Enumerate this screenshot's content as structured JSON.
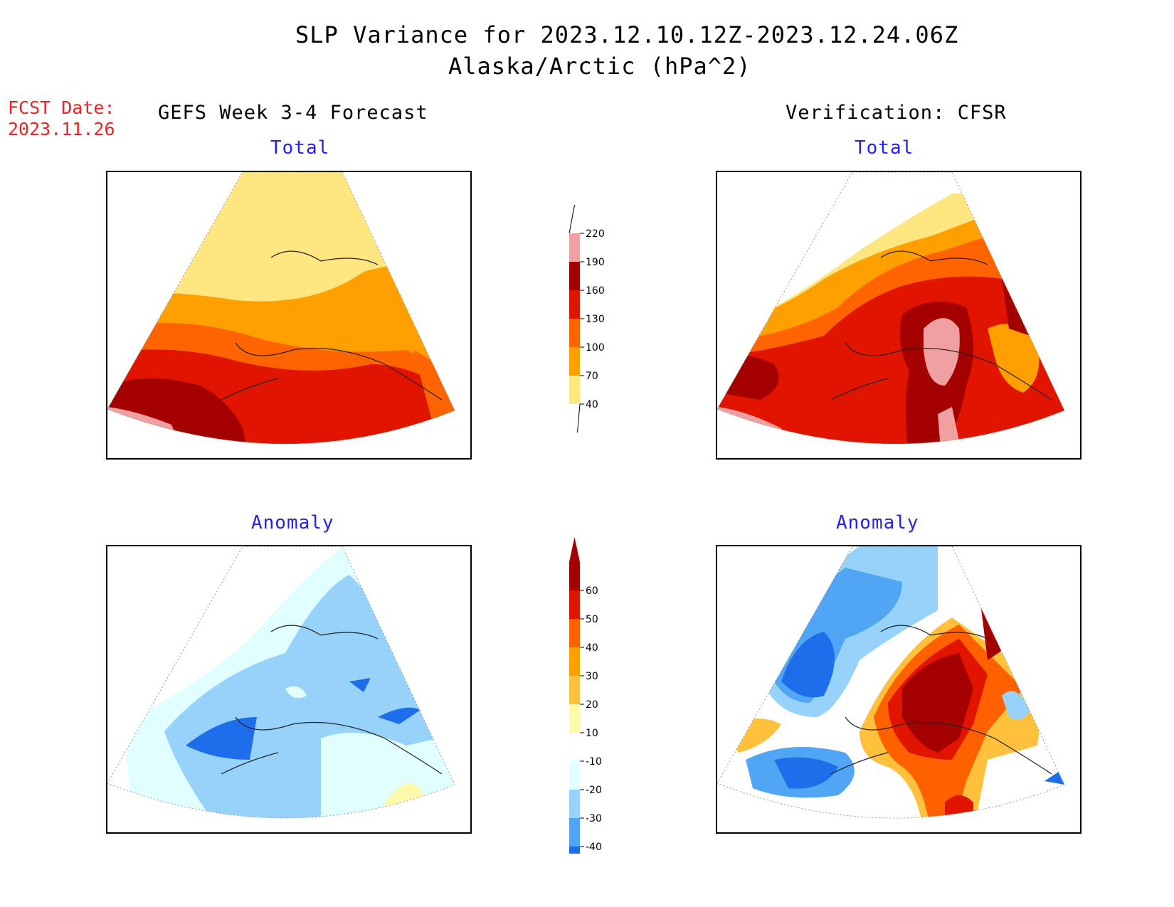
{
  "header": {
    "title_line1": "SLP Variance for 2023.12.10.12Z-2023.12.24.06Z",
    "title_line2": "Alaska/Arctic (hPa^2)"
  },
  "fcst_date": {
    "label": "FCST Date:",
    "value": "2023.11.26"
  },
  "columns": {
    "left": "GEFS Week 3-4 Forecast",
    "right": "Verification: CFSR"
  },
  "panels": {
    "fcst_total_label": "Total",
    "fcst_anomaly_label": "Anomaly",
    "ver_total_label": "Total",
    "ver_anomaly_label": "Anomaly"
  },
  "colorbars": {
    "total": {
      "levels": [
        "40",
        "70",
        "100",
        "130",
        "160",
        "190",
        "220"
      ],
      "colors": [
        "#ffe680",
        "#ffa000",
        "#ff6400",
        "#e11400",
        "#a50000",
        "#f0a0a0"
      ]
    },
    "anomaly": {
      "levels": [
        "-40",
        "-30",
        "-20",
        "-10",
        "10",
        "20",
        "30",
        "40",
        "50",
        "60"
      ],
      "colors": [
        "#1e6eeb",
        "#50a5f5",
        "#96d2fa",
        "#e1ffff",
        "#ffffff",
        "#fffaaa",
        "#ffc03c",
        "#ffa000",
        "#ff6000",
        "#e11400",
        "#a50000"
      ]
    }
  }
}
